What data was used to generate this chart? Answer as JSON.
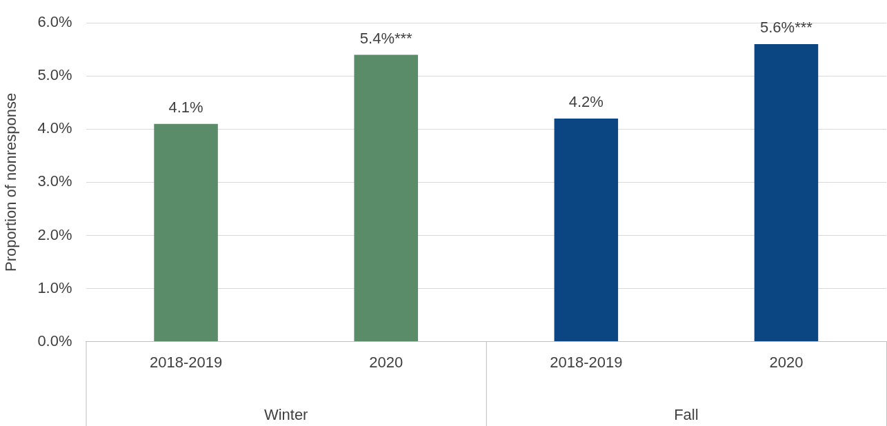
{
  "chart_data": {
    "type": "bar",
    "ylabel": "Proportion of nonresponse",
    "categories": [
      "2018-2019",
      "2020",
      "2018-2019",
      "2020"
    ],
    "values": [
      4.1,
      5.4,
      4.2,
      5.6
    ],
    "colors": [
      "#5b8c69",
      "#5b8c69",
      "#0b4682",
      "#0b4682"
    ],
    "value_labels": [
      "4.1%",
      "5.4%***",
      "4.2%",
      "5.6%***"
    ],
    "annotations": [
      "Winter",
      "Fall"
    ],
    "ylim": [
      0,
      6
    ],
    "yticks": [
      {
        "value": 0,
        "label": "0.0%"
      },
      {
        "value": 1,
        "label": "1.0%"
      },
      {
        "value": 2,
        "label": "2.0%"
      },
      {
        "value": 3,
        "label": "3.0%"
      },
      {
        "value": 4,
        "label": "4.0%"
      },
      {
        "value": 5,
        "label": "5.0%"
      },
      {
        "value": 6,
        "label": "6.0%"
      }
    ],
    "grid": "y",
    "legend": false
  }
}
